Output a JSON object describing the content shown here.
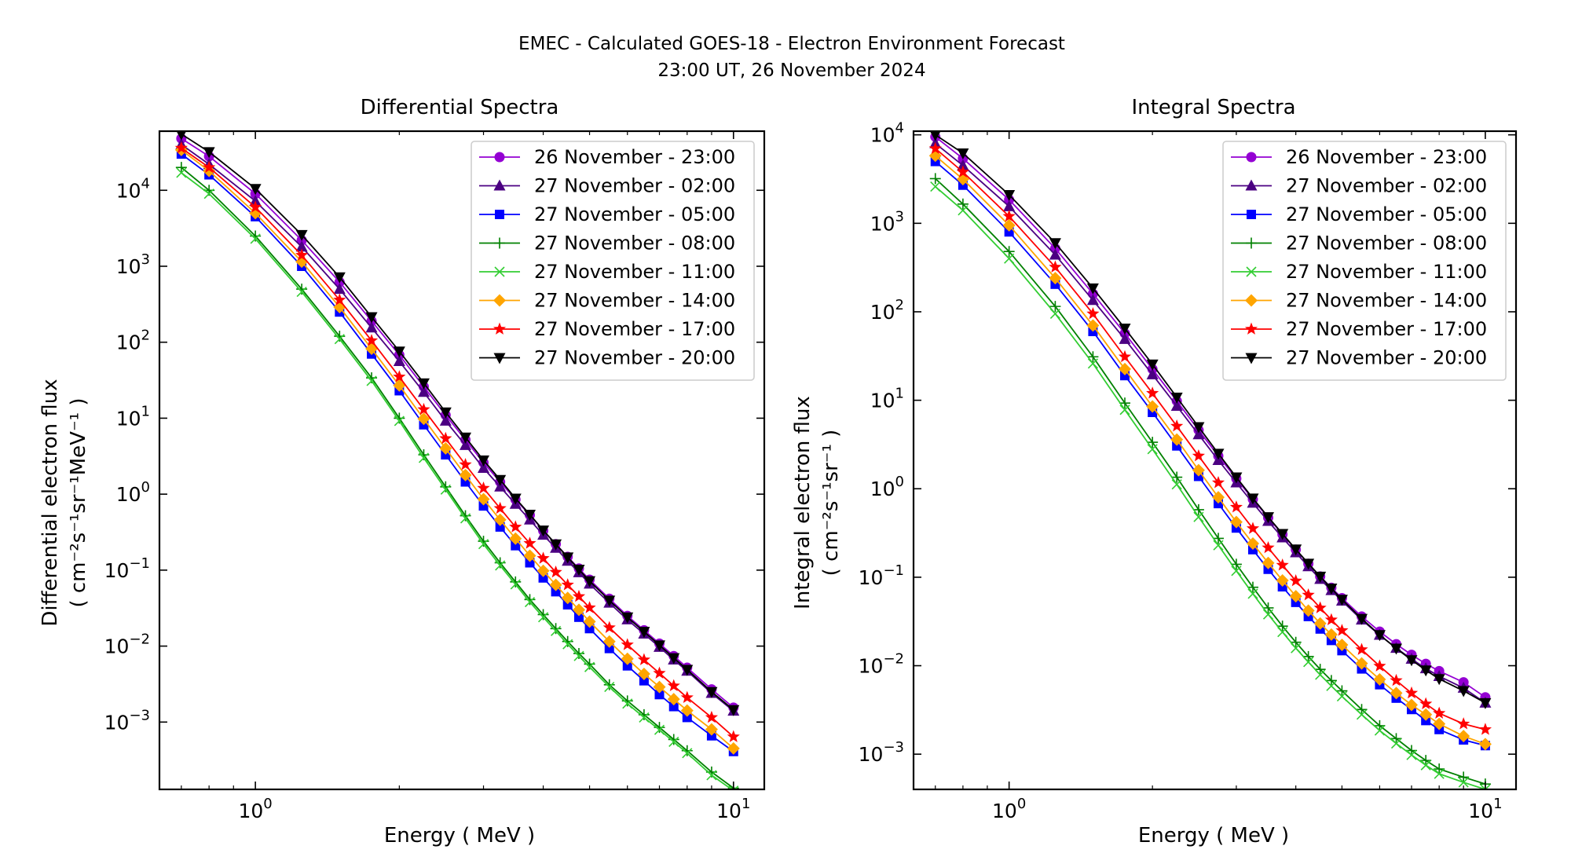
{
  "figure": {
    "suptitle_line1": "EMEC - Calculated GOES-18 - Electron Environment Forecast",
    "suptitle_line2": "23:00 UT, 26 November 2024"
  },
  "series_styles": [
    {
      "name": "26 November - 23:00",
      "color": "#9400D3",
      "marker": "circle"
    },
    {
      "name": "27 November - 02:00",
      "color": "#4B0082",
      "marker": "triangle-up"
    },
    {
      "name": "27 November - 05:00",
      "color": "#0000FF",
      "marker": "square"
    },
    {
      "name": "27 November - 08:00",
      "color": "#008000",
      "marker": "plus"
    },
    {
      "name": "27 November - 11:00",
      "color": "#32CD32",
      "marker": "x"
    },
    {
      "name": "27 November - 14:00",
      "color": "#FFA500",
      "marker": "diamond"
    },
    {
      "name": "27 November - 17:00",
      "color": "#FF0000",
      "marker": "star"
    },
    {
      "name": "27 November - 20:00",
      "color": "#000000",
      "marker": "triangle-down"
    }
  ],
  "chart_data": [
    {
      "type": "line",
      "title": "Differential Spectra",
      "xlabel": "Energy ( MeV )",
      "ylabel_line1": "Differential electron flux",
      "ylabel_line2_base": "( cm",
      "ylabel_units": "( cm⁻²s⁻¹sr⁻¹MeV⁻¹ )",
      "x_scale": "log",
      "y_scale": "log",
      "xlim": [
        0.63,
        11.6
      ],
      "ylim": [
        0.00013,
        60000
      ],
      "x_ticks": [
        1,
        10
      ],
      "x_tick_labels": [
        "10^0",
        "10^1"
      ],
      "y_ticks": [
        0.001,
        0.01,
        0.1,
        1,
        10,
        100,
        1000,
        10000
      ],
      "y_tick_labels": [
        "10^-3",
        "10^-2",
        "10^-1",
        "10^0",
        "10^1",
        "10^2",
        "10^3",
        "10^4"
      ],
      "legend_position": "top-right",
      "x": [
        0.7,
        0.8,
        1.0,
        1.25,
        1.5,
        1.75,
        2.0,
        2.25,
        2.5,
        2.75,
        3.0,
        3.25,
        3.5,
        3.75,
        4.0,
        4.25,
        4.5,
        4.75,
        5.0,
        5.5,
        6.0,
        6.5,
        7.0,
        7.5,
        8.0,
        9.0,
        10.0
      ],
      "series": [
        {
          "name": "26 November - 23:00",
          "values": [
            48000,
            28000,
            9000,
            2200,
            620,
            190,
            68,
            26,
            11,
            5.2,
            2.6,
            1.45,
            0.85,
            0.53,
            0.33,
            0.22,
            0.15,
            0.105,
            0.075,
            0.042,
            0.025,
            0.0162,
            0.0108,
            0.0074,
            0.0052,
            0.0027,
            0.00155
          ]
        },
        {
          "name": "27 November - 02:00",
          "values": [
            40000,
            22000,
            7200,
            1800,
            500,
            155,
            56,
            22,
            9.2,
            4.4,
            2.2,
            1.25,
            0.74,
            0.46,
            0.29,
            0.195,
            0.132,
            0.093,
            0.066,
            0.037,
            0.0223,
            0.0145,
            0.0097,
            0.0066,
            0.0047,
            0.0024,
            0.0014
          ]
        },
        {
          "name": "27 November - 05:00",
          "values": [
            30000,
            16000,
            4500,
            1000,
            250,
            70,
            23,
            8.2,
            3.3,
            1.45,
            0.7,
            0.37,
            0.21,
            0.125,
            0.079,
            0.052,
            0.035,
            0.024,
            0.017,
            0.0093,
            0.0055,
            0.0035,
            0.0023,
            0.0016,
            0.00115,
            0.00066,
            0.00041
          ]
        },
        {
          "name": "27 November - 08:00",
          "values": [
            20000,
            10000,
            2500,
            500,
            120,
            34,
            10,
            3.3,
            1.25,
            0.52,
            0.24,
            0.125,
            0.07,
            0.041,
            0.026,
            0.017,
            0.0115,
            0.008,
            0.0058,
            0.0031,
            0.0019,
            0.00125,
            0.00085,
            0.00059,
            0.00042,
            0.00022,
            0.000135
          ]
        },
        {
          "name": "27 November - 11:00",
          "values": [
            17000,
            9000,
            2300,
            460,
            110,
            31,
            9.2,
            3.0,
            1.15,
            0.48,
            0.22,
            0.115,
            0.065,
            0.038,
            0.024,
            0.0158,
            0.0106,
            0.0074,
            0.0053,
            0.0029,
            0.00175,
            0.00115,
            0.00079,
            0.00055,
            0.00039,
            0.0002,
            0.000125
          ]
        },
        {
          "name": "27 November - 14:00",
          "values": [
            34000,
            18000,
            5000,
            1150,
            290,
            82,
            27,
            9.8,
            4.0,
            1.78,
            0.86,
            0.46,
            0.26,
            0.155,
            0.098,
            0.064,
            0.043,
            0.03,
            0.021,
            0.0115,
            0.0068,
            0.0043,
            0.0029,
            0.002,
            0.00142,
            0.0008,
            0.00045
          ]
        },
        {
          "name": "27 November - 17:00",
          "values": [
            36000,
            20000,
            6000,
            1400,
            360,
            105,
            35,
            13,
            5.4,
            2.45,
            1.2,
            0.65,
            0.37,
            0.225,
            0.143,
            0.094,
            0.064,
            0.045,
            0.032,
            0.0175,
            0.0104,
            0.0066,
            0.0044,
            0.003,
            0.0021,
            0.00115,
            0.00064
          ]
        },
        {
          "name": "27 November - 20:00",
          "values": [
            55000,
            32000,
            10500,
            2600,
            720,
            215,
            76,
            29,
            12,
            5.6,
            2.8,
            1.55,
            0.88,
            0.54,
            0.335,
            0.22,
            0.148,
            0.102,
            0.072,
            0.04,
            0.024,
            0.0155,
            0.0103,
            0.007,
            0.0049,
            0.0025,
            0.00145
          ]
        }
      ]
    },
    {
      "type": "line",
      "title": "Integral Spectra",
      "xlabel": "Energy ( MeV )",
      "ylabel_line1": "Integral electron flux",
      "ylabel_units": "( cm⁻²s⁻¹sr⁻¹ )",
      "x_scale": "log",
      "y_scale": "log",
      "xlim": [
        0.63,
        11.6
      ],
      "ylim": [
        0.0004,
        11000
      ],
      "x_ticks": [
        1,
        10
      ],
      "x_tick_labels": [
        "10^0",
        "10^1"
      ],
      "y_ticks": [
        0.001,
        0.01,
        0.1,
        1,
        10,
        100,
        1000,
        10000
      ],
      "y_tick_labels": [
        "10^-3",
        "10^-2",
        "10^-1",
        "10^0",
        "10^1",
        "10^2",
        "10^3",
        "10^4"
      ],
      "legend_position": "top-right",
      "x": [
        0.7,
        0.8,
        1.0,
        1.25,
        1.5,
        1.75,
        2.0,
        2.25,
        2.5,
        2.75,
        3.0,
        3.25,
        3.5,
        3.75,
        4.0,
        4.25,
        4.5,
        4.75,
        5.0,
        5.5,
        6.0,
        6.5,
        7.0,
        7.5,
        8.0,
        9.0,
        10.0
      ],
      "series": [
        {
          "name": "26 November - 23:00",
          "values": [
            9500,
            5400,
            1850,
            520,
            160,
            57,
            22.5,
            9.8,
            4.6,
            2.35,
            1.3,
            0.76,
            0.47,
            0.305,
            0.205,
            0.142,
            0.102,
            0.076,
            0.058,
            0.036,
            0.0243,
            0.0175,
            0.0133,
            0.0105,
            0.0087,
            0.0065,
            0.0044
          ]
        },
        {
          "name": "27 November - 02:00",
          "values": [
            8000,
            4500,
            1550,
            440,
            135,
            49,
            19.5,
            8.6,
            4.1,
            2.1,
            1.17,
            0.69,
            0.43,
            0.28,
            0.19,
            0.132,
            0.095,
            0.071,
            0.054,
            0.033,
            0.0222,
            0.0158,
            0.0119,
            0.0093,
            0.0076,
            0.0056,
            0.0038
          ]
        },
        {
          "name": "27 November - 05:00",
          "values": [
            5000,
            2700,
            800,
            205,
            60,
            19,
            7.3,
            3.05,
            1.38,
            0.68,
            0.36,
            0.205,
            0.123,
            0.078,
            0.052,
            0.036,
            0.026,
            0.0193,
            0.0148,
            0.0092,
            0.0061,
            0.0043,
            0.0032,
            0.0024,
            0.0019,
            0.00145,
            0.00125
          ]
        },
        {
          "name": "27 November - 08:00",
          "values": [
            3200,
            1650,
            480,
            115,
            31,
            9.3,
            3.35,
            1.35,
            0.58,
            0.275,
            0.14,
            0.077,
            0.045,
            0.028,
            0.0184,
            0.0127,
            0.0091,
            0.0068,
            0.0052,
            0.0032,
            0.0021,
            0.0015,
            0.0011,
            0.00085,
            0.00068,
            0.00055,
            0.00046
          ]
        },
        {
          "name": "27 November - 11:00",
          "values": [
            2600,
            1400,
            400,
            95,
            26,
            7.8,
            2.8,
            1.12,
            0.48,
            0.23,
            0.118,
            0.065,
            0.038,
            0.024,
            0.0158,
            0.011,
            0.0079,
            0.0059,
            0.0045,
            0.0028,
            0.00185,
            0.00132,
            0.00098,
            0.00075,
            0.0006,
            0.00048,
            0.0004
          ]
        },
        {
          "name": "27 November - 14:00",
          "values": [
            5800,
            3150,
            950,
            240,
            70,
            22.5,
            8.5,
            3.6,
            1.62,
            0.8,
            0.42,
            0.24,
            0.145,
            0.092,
            0.061,
            0.042,
            0.03,
            0.0225,
            0.0172,
            0.0106,
            0.007,
            0.0049,
            0.0036,
            0.0028,
            0.0022,
            0.0016,
            0.0013
          ]
        },
        {
          "name": "27 November - 17:00",
          "values": [
            7000,
            3800,
            1200,
            320,
            95,
            31,
            12,
            5.1,
            2.35,
            1.17,
            0.62,
            0.355,
            0.215,
            0.137,
            0.091,
            0.063,
            0.045,
            0.033,
            0.025,
            0.0152,
            0.0099,
            0.0068,
            0.0049,
            0.0037,
            0.0029,
            0.0022,
            0.0019
          ]
        },
        {
          "name": "27 November - 20:00",
          "values": [
            10000,
            6200,
            2100,
            600,
            185,
            65,
            25.5,
            10.8,
            5.0,
            2.5,
            1.35,
            0.78,
            0.48,
            0.31,
            0.207,
            0.143,
            0.102,
            0.075,
            0.056,
            0.034,
            0.0223,
            0.0157,
            0.0116,
            0.0089,
            0.0071,
            0.0052,
            0.0038
          ]
        }
      ]
    }
  ]
}
